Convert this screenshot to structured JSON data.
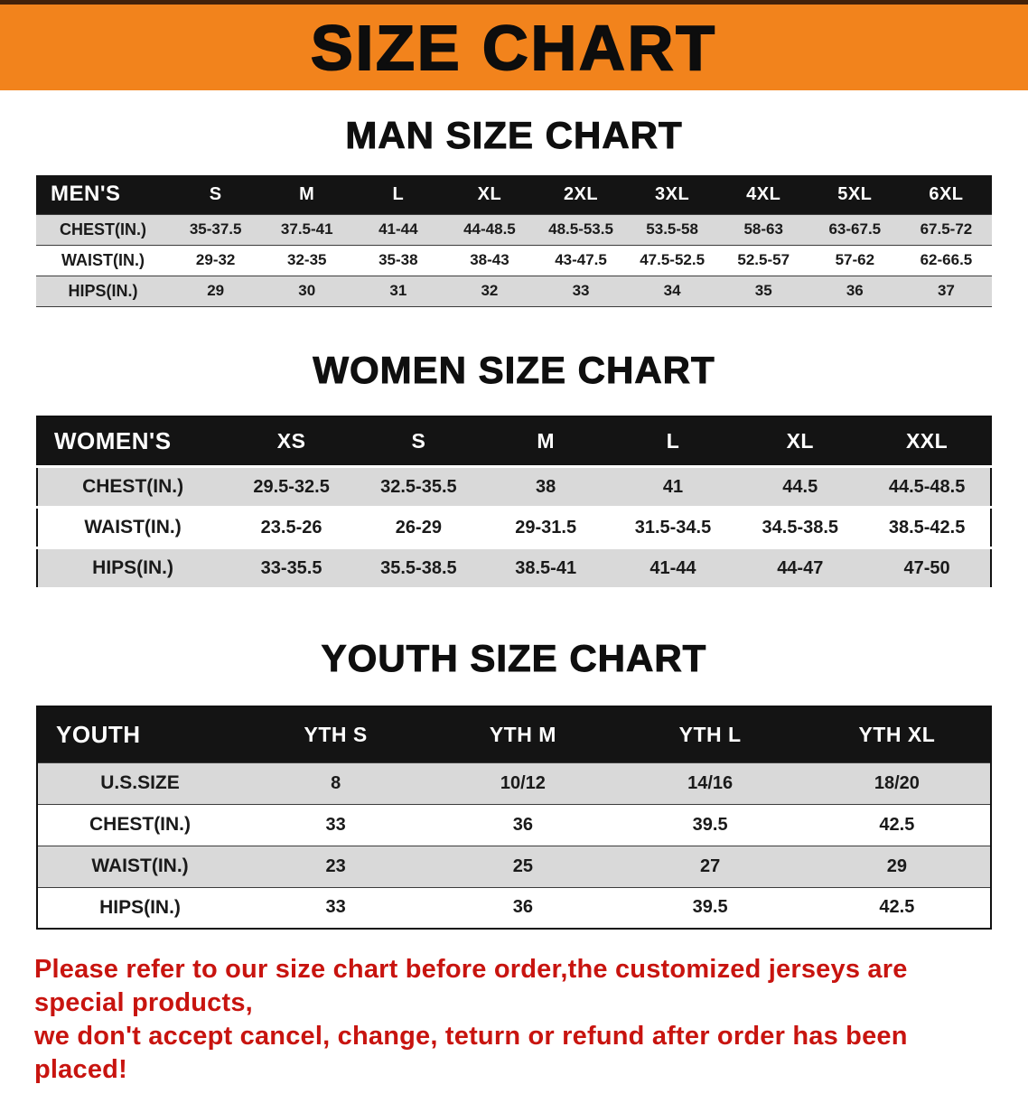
{
  "banner": {
    "title": "SIZE CHART",
    "bg_color": "#f2831c"
  },
  "sections": {
    "men": {
      "heading": "MAN SIZE CHART",
      "table": {
        "header": [
          "MEN'S",
          "S",
          "M",
          "L",
          "XL",
          "2XL",
          "3XL",
          "4XL",
          "5XL",
          "6XL"
        ],
        "rows": [
          {
            "label": "CHEST(IN.)",
            "values": [
              "35-37.5",
              "37.5-41",
              "41-44",
              "44-48.5",
              "48.5-53.5",
              "53.5-58",
              "58-63",
              "63-67.5",
              "67.5-72"
            ]
          },
          {
            "label": "WAIST(IN.)",
            "values": [
              "29-32",
              "32-35",
              "35-38",
              "38-43",
              "43-47.5",
              "47.5-52.5",
              "52.5-57",
              "57-62",
              "62-66.5"
            ]
          },
          {
            "label": "HIPS(IN.)",
            "values": [
              "29",
              "30",
              "31",
              "32",
              "33",
              "34",
              "35",
              "36",
              "37"
            ]
          }
        ]
      }
    },
    "women": {
      "heading": "WOMEN SIZE CHART",
      "table": {
        "header": [
          "WOMEN'S",
          "XS",
          "S",
          "M",
          "L",
          "XL",
          "XXL"
        ],
        "rows": [
          {
            "label": "CHEST(IN.)",
            "values": [
              "29.5-32.5",
              "32.5-35.5",
              "38",
              "41",
              "44.5",
              "44.5-48.5"
            ]
          },
          {
            "label": "WAIST(IN.)",
            "values": [
              "23.5-26",
              "26-29",
              "29-31.5",
              "31.5-34.5",
              "34.5-38.5",
              "38.5-42.5"
            ]
          },
          {
            "label": "HIPS(IN.)",
            "values": [
              "33-35.5",
              "35.5-38.5",
              "38.5-41",
              "41-44",
              "44-47",
              "47-50"
            ]
          }
        ]
      }
    },
    "youth": {
      "heading": "YOUTH SIZE CHART",
      "table": {
        "header": [
          "YOUTH",
          "YTH S",
          "YTH M",
          "YTH L",
          "YTH XL"
        ],
        "rows": [
          {
            "label": "U.S.SIZE",
            "values": [
              "8",
              "10/12",
              "14/16",
              "18/20"
            ]
          },
          {
            "label": "CHEST(IN.)",
            "values": [
              "33",
              "36",
              "39.5",
              "42.5"
            ]
          },
          {
            "label": "WAIST(IN.)",
            "values": [
              "23",
              "25",
              "27",
              "29"
            ]
          },
          {
            "label": "HIPS(IN.)",
            "values": [
              "33",
              "36",
              "39.5",
              "42.5"
            ]
          }
        ]
      }
    }
  },
  "disclaimer": {
    "line1": "Please refer to our size chart before order,the customized jerseys are special products,",
    "line2": "we don't accept cancel, change, teturn or refund after order has been placed!",
    "color": "#c8140f"
  },
  "colors": {
    "banner_bg": "#f2831c",
    "table_header_bg": "#141414",
    "row_shade": "#d9d9d9",
    "disclaimer_red": "#c8140f"
  }
}
